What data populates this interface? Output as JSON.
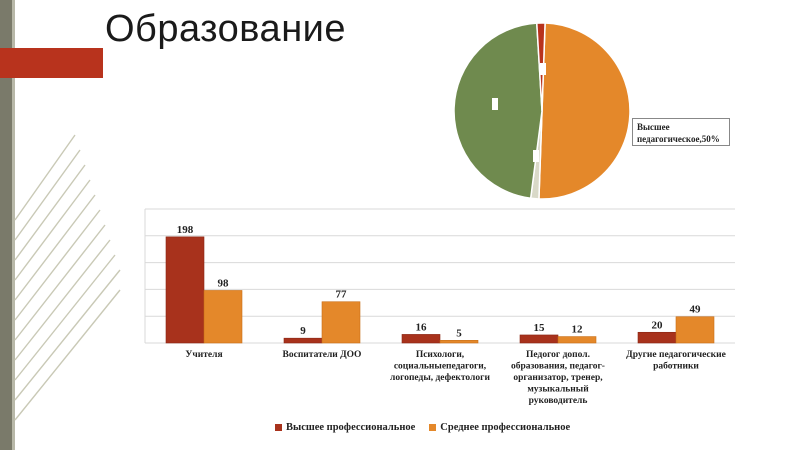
{
  "slide": {
    "title": "Образование",
    "colors": {
      "sidebar": "#7a7a6a",
      "accent_band": "#b8331d"
    }
  },
  "chart_data": [
    {
      "type": "pie",
      "slices": [
        {
          "name": "Высшее педагогическое",
          "value": 50,
          "color": "#e4882a"
        },
        {
          "name": "",
          "value": 1.5,
          "color": "#d9d9c8"
        },
        {
          "name": "",
          "value": 47,
          "color": "#6f8a4e"
        },
        {
          "name": "",
          "value": 1.5,
          "color": "#b8331d"
        }
      ],
      "callout": {
        "line1": "Высшее",
        "line2": "педагогическое,50%"
      }
    },
    {
      "type": "bar",
      "categories": [
        [
          "Учителя"
        ],
        [
          "Воспитатели ДОО"
        ],
        [
          "Психологи,",
          "социальныепедагоги,",
          "логопеды, дефектологи"
        ],
        [
          "Педогог допол.",
          "образования, педагог-",
          "организатор, тренер,",
          "музыкальный",
          "руководитель"
        ],
        [
          "Другие педагогические",
          "работники"
        ]
      ],
      "series": [
        {
          "name": "Высшее профессиональное",
          "values": [
            198,
            9,
            16,
            15,
            20
          ],
          "color": "#a8321c"
        },
        {
          "name": "Среднее профессиональное",
          "values": [
            98,
            77,
            5,
            12,
            49
          ],
          "color": "#e4882a"
        }
      ],
      "ylim": [
        0,
        250
      ],
      "grid": true,
      "legend_position": "bottom"
    }
  ]
}
